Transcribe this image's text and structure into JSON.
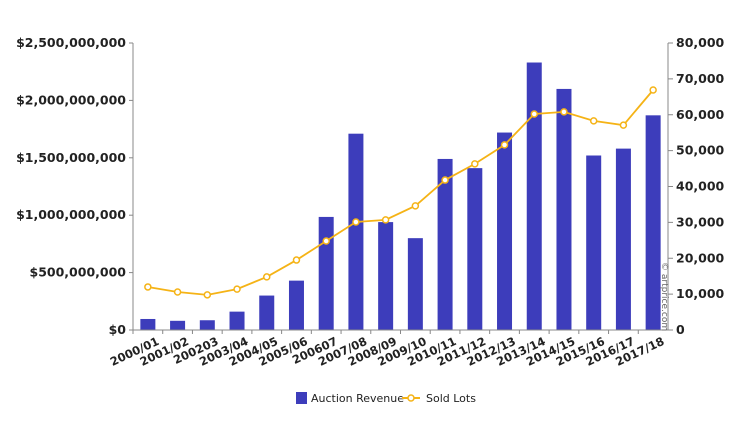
{
  "chart_data": {
    "type": "bar+line",
    "categories": [
      "2000/01",
      "2001/02",
      "200203",
      "2003/04",
      "2004/05",
      "2005/06",
      "200607",
      "2007/08",
      "2008/09",
      "2009/10",
      "2010/11",
      "2011/12",
      "2012/13",
      "2013/14",
      "2014/15",
      "2015/16",
      "2016/17",
      "2017/18"
    ],
    "series": [
      {
        "name": "Auction Revenue",
        "type": "bar",
        "axis": "left",
        "color": "#3d3dbb",
        "values": [
          96000000,
          80000000,
          85000000,
          160000000,
          300000000,
          430000000,
          985000000,
          1710000000,
          940000000,
          800000000,
          1490000000,
          1410000000,
          1720000000,
          2330000000,
          2100000000,
          1520000000,
          1580000000,
          1870000000
        ]
      },
      {
        "name": "Sold Lots",
        "type": "line",
        "axis": "right",
        "color": "#f5b316",
        "values": [
          12000,
          10600,
          9800,
          11400,
          14800,
          19500,
          24800,
          30100,
          30700,
          34600,
          41800,
          46300,
          51600,
          60200,
          60800,
          58300,
          57100,
          66900
        ]
      }
    ],
    "left_axis": {
      "ylim": [
        0,
        2500000000
      ],
      "ticks": [
        "$0",
        "$500,000,000",
        "$1,000,000,000",
        "$1,500,000,000",
        "$2,000,000,000",
        "$2,500,000,000"
      ]
    },
    "right_axis": {
      "ylim": [
        0,
        80000
      ],
      "ticks": [
        "0",
        "10,000",
        "20,000",
        "30,000",
        "40,000",
        "50,000",
        "60,000",
        "70,000",
        "80,000"
      ]
    },
    "grid": false,
    "legend": "bottom"
  },
  "watermark": "© artprice.com"
}
